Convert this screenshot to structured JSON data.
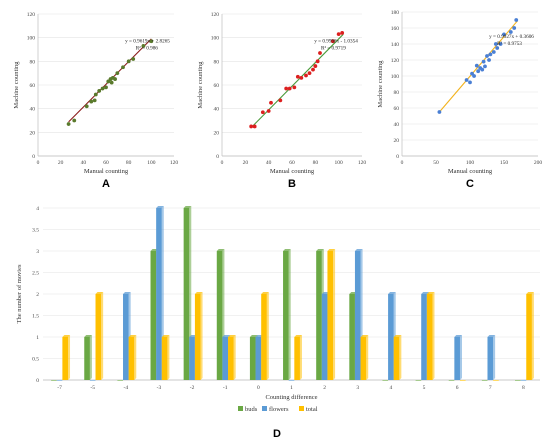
{
  "chart_data": [
    {
      "type": "scatter",
      "panel": "A",
      "xlabel": "Manual  counting",
      "ylabel": "Machine  counting",
      "xlim": [
        0,
        120
      ],
      "ylim": [
        0,
        120
      ],
      "xticks": [
        0,
        20,
        40,
        60,
        80,
        100,
        120
      ],
      "yticks": [
        0,
        20,
        40,
        60,
        80,
        100,
        120
      ],
      "equation": "y = 0.9619x + 2.8265",
      "r2": "R² = 0.986",
      "fit": {
        "slope": 0.9619,
        "intercept": 2.8265,
        "x_range": [
          27,
          100
        ]
      },
      "colors": {
        "point": "#5a7a2c",
        "line": "#8b1a1a"
      },
      "points": [
        [
          27,
          27
        ],
        [
          32,
          30
        ],
        [
          43,
          42
        ],
        [
          47,
          46
        ],
        [
          50,
          47
        ],
        [
          51,
          52
        ],
        [
          54,
          55
        ],
        [
          57,
          57
        ],
        [
          60,
          58
        ],
        [
          62,
          63
        ],
        [
          64,
          65
        ],
        [
          65,
          62
        ],
        [
          66,
          66
        ],
        [
          68,
          65
        ],
        [
          70,
          70
        ],
        [
          75,
          75
        ],
        [
          80,
          80
        ],
        [
          84,
          82
        ],
        [
          93,
          93
        ],
        [
          100,
          97
        ]
      ]
    },
    {
      "type": "scatter",
      "panel": "B",
      "xlabel": "Manual  counting",
      "ylabel": "Machine  counting",
      "xlim": [
        0,
        120
      ],
      "ylim": [
        0,
        120
      ],
      "xticks": [
        0,
        20,
        40,
        60,
        80,
        100,
        120
      ],
      "yticks": [
        0,
        20,
        40,
        60,
        80,
        100,
        120
      ],
      "equation": "y = 0.9998x - 1.0354",
      "r2": "R² = 0.9719",
      "fit": {
        "slope": 0.9998,
        "intercept": -1.0354,
        "x_range": [
          25,
          104
        ]
      },
      "colors": {
        "point": "#dd1f1f",
        "line": "#4a9a3a"
      },
      "points": [
        [
          25,
          25
        ],
        [
          28,
          25
        ],
        [
          35,
          37
        ],
        [
          40,
          38
        ],
        [
          42,
          45
        ],
        [
          50,
          47
        ],
        [
          55,
          57
        ],
        [
          58,
          57
        ],
        [
          62,
          58
        ],
        [
          65,
          67
        ],
        [
          68,
          66
        ],
        [
          72,
          68
        ],
        [
          75,
          70
        ],
        [
          78,
          73
        ],
        [
          80,
          76
        ],
        [
          82,
          80
        ],
        [
          84,
          87
        ],
        [
          95,
          97
        ],
        [
          100,
          103
        ],
        [
          103,
          104
        ]
      ]
    },
    {
      "type": "scatter",
      "panel": "C",
      "xlabel": "Manual  counting",
      "ylabel": "Machine  counting",
      "xlim": [
        0,
        200
      ],
      "ylim": [
        0,
        180
      ],
      "xticks": [
        0,
        50,
        100,
        150,
        200
      ],
      "yticks": [
        0,
        20,
        40,
        60,
        80,
        100,
        120,
        140,
        160,
        180
      ],
      "equation": "y = 0.9927x + 0.3606",
      "r2": "R² = 0.9753",
      "fit": {
        "slope": 0.9927,
        "intercept": 0.3606,
        "x_range": [
          55,
          170
        ]
      },
      "colors": {
        "point": "#4a7fd4",
        "line": "#f2b21c"
      },
      "points": [
        [
          55,
          55
        ],
        [
          95,
          95
        ],
        [
          100,
          92
        ],
        [
          103,
          103
        ],
        [
          106,
          100
        ],
        [
          110,
          113
        ],
        [
          112,
          106
        ],
        [
          115,
          110
        ],
        [
          118,
          108
        ],
        [
          120,
          118
        ],
        [
          122,
          112
        ],
        [
          125,
          125
        ],
        [
          128,
          120
        ],
        [
          130,
          127
        ],
        [
          135,
          130
        ],
        [
          138,
          140
        ],
        [
          140,
          135
        ],
        [
          145,
          140
        ],
        [
          150,
          152
        ],
        [
          160,
          155
        ],
        [
          165,
          160
        ],
        [
          168,
          170
        ]
      ]
    },
    {
      "type": "bar",
      "panel": "D",
      "xlabel": "Counting  difference",
      "ylabel": "The number of movies",
      "ylim": [
        0,
        4
      ],
      "yticks": [
        "0",
        "0.5",
        "1",
        "1.5",
        "2",
        "2.5",
        "3",
        "3.5",
        "4"
      ],
      "categories": [
        "-7",
        "-5",
        "-4",
        "-3",
        "-2",
        "-1",
        "0",
        "1",
        "2",
        "3",
        "4",
        "5",
        "6",
        "7",
        "8"
      ],
      "series": [
        {
          "name": "buds",
          "color": "#6aa844",
          "values": [
            0,
            1,
            0,
            3,
            4,
            3,
            1,
            3,
            3,
            2,
            0,
            0,
            0,
            0,
            0
          ]
        },
        {
          "name": "flowers",
          "color": "#5b9bd5",
          "values": [
            0,
            0,
            2,
            4,
            1,
            1,
            1,
            0,
            2,
            3,
            2,
            2,
            1,
            1,
            0
          ]
        },
        {
          "name": "total",
          "color": "#ffc000",
          "values": [
            1,
            2,
            1,
            1,
            2,
            1,
            2,
            1,
            3,
            1,
            1,
            2,
            0,
            0,
            2
          ]
        }
      ],
      "legend": "bottom"
    }
  ]
}
